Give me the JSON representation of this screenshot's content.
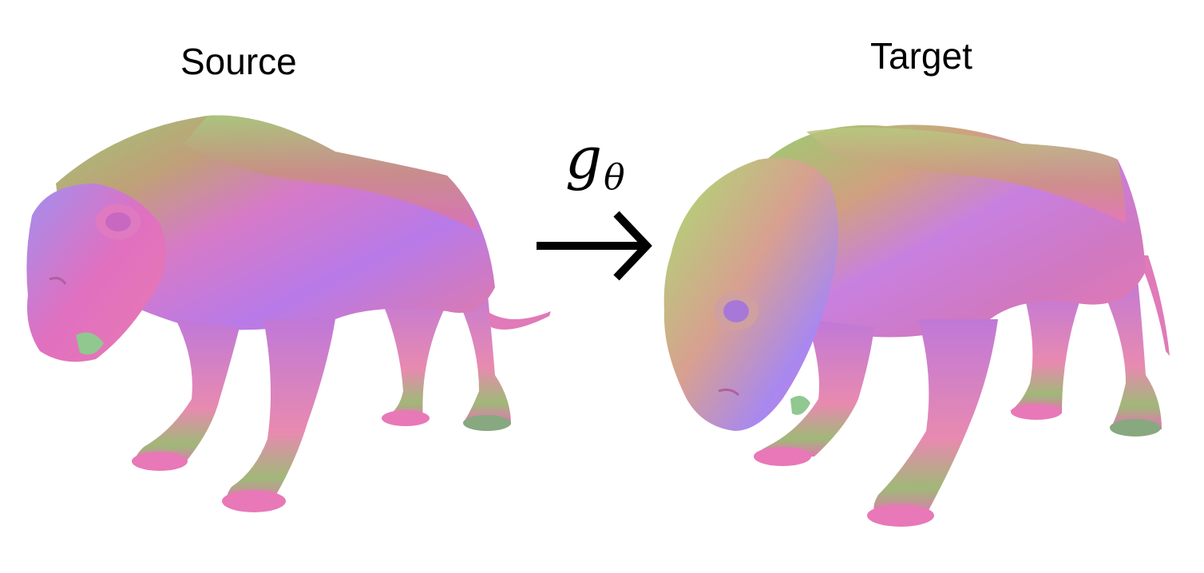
{
  "titles": {
    "source": "Source",
    "target": "Target"
  },
  "transform": {
    "symbol": "g",
    "subscript": "θ",
    "arrow": "right-arrow-icon"
  },
  "colors": {
    "pink": "#e86ab6",
    "magenta": "#c86ae8",
    "violet": "#a07cf0",
    "green": "#9cc878",
    "olive": "#b8a070",
    "orange": "#e0a070",
    "ink": "#000000"
  },
  "figures": [
    {
      "role": "source",
      "subject": "tiger-mesh-standing"
    },
    {
      "role": "target",
      "subject": "tiger-mesh-crouching"
    }
  ]
}
